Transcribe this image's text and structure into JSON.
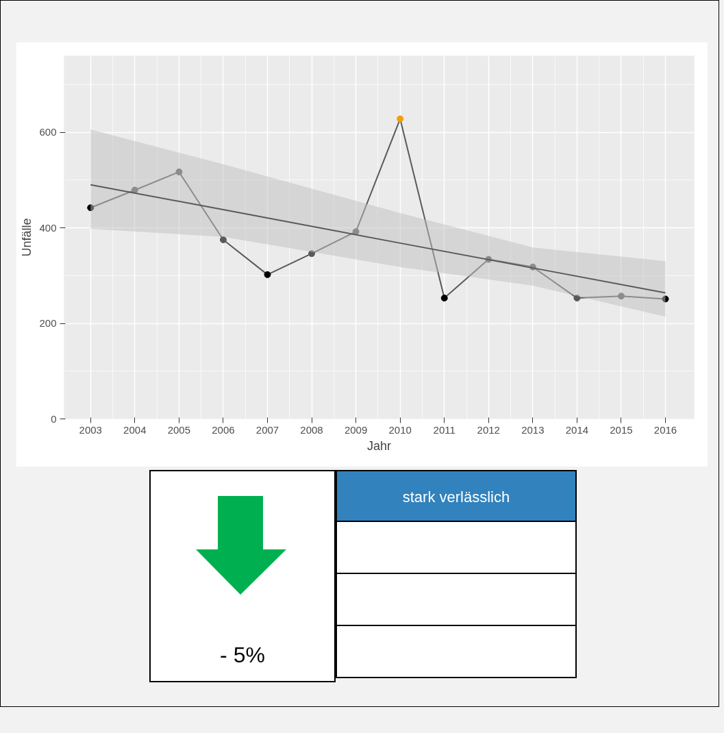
{
  "chart_data": {
    "type": "line",
    "xlabel": "Jahr",
    "ylabel": "Unfälle",
    "x": [
      2003,
      2004,
      2005,
      2006,
      2007,
      2008,
      2009,
      2010,
      2011,
      2012,
      2013,
      2014,
      2015,
      2016
    ],
    "series": [
      {
        "color": "#595959",
        "marker": "circle",
        "colors": [
          "#000000",
          "#595959",
          "#595959",
          "#595959",
          "#000000",
          "#595959",
          "#595959",
          "#f0a000",
          "#000000",
          "#595959",
          "#595959",
          "#595959",
          "#595959",
          "#000000"
        ],
        "values": [
          442,
          479,
          517,
          375,
          302,
          346,
          392,
          628,
          253,
          334,
          318,
          253,
          257,
          251
        ]
      },
      {
        "type": "line",
        "color": "#595959",
        "marker": "none",
        "x": [
          2003,
          2006,
          2010,
          2013,
          2016
        ],
        "values": [
          490,
          438,
          368,
          316,
          264
        ],
        "lower": [
          398,
          381,
          318,
          279,
          214
        ],
        "upper": [
          606,
          533,
          431,
          359,
          330
        ]
      }
    ],
    "xlim": [
      2002.4,
      2016.65
    ],
    "ylim": [
      0,
      760
    ],
    "xticks": [
      2003,
      2004,
      2005,
      2006,
      2007,
      2008,
      2009,
      2010,
      2011,
      2012,
      2013,
      2014,
      2015,
      2016
    ],
    "yticks": [
      0,
      200,
      400,
      600
    ],
    "grid": true,
    "annotations": [
      "stark verlässlich",
      "- 5%"
    ]
  }
}
